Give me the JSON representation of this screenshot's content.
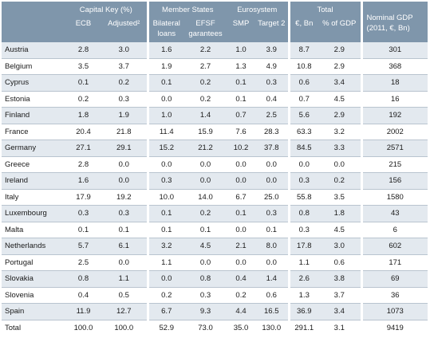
{
  "header": {
    "capital_key": "Capital Key (%)",
    "member_states": "Member States",
    "eurosystem": "Eurosystem",
    "total": "Total",
    "nominal_gdp": "Nominal GDP (2011, €, Bn)",
    "ecb": "ECB",
    "adjusted": "Adjusted²",
    "bilateral": "Bilateral loans",
    "efsf": "EFSF garantees",
    "smp": "SMP",
    "target2": "Target 2",
    "eur_bn": "€, Bn",
    "pct_gdp": "% of GDP"
  },
  "rows": [
    {
      "country": "Austria",
      "ecb": "2.8",
      "adjusted": "3.0",
      "bilateral": "1.6",
      "efsf": "2.2",
      "smp": "1.0",
      "target2": "3.9",
      "eur_bn": "8.7",
      "pct_gdp": "2.9",
      "gdp": "301"
    },
    {
      "country": "Belgium",
      "ecb": "3.5",
      "adjusted": "3.7",
      "bilateral": "1.9",
      "efsf": "2.7",
      "smp": "1.3",
      "target2": "4.9",
      "eur_bn": "10.8",
      "pct_gdp": "2.9",
      "gdp": "368"
    },
    {
      "country": "Cyprus",
      "ecb": "0.1",
      "adjusted": "0.2",
      "bilateral": "0.1",
      "efsf": "0.2",
      "smp": "0.1",
      "target2": "0.3",
      "eur_bn": "0.6",
      "pct_gdp": "3.4",
      "gdp": "18"
    },
    {
      "country": "Estonia",
      "ecb": "0.2",
      "adjusted": "0.3",
      "bilateral": "0.0",
      "efsf": "0.2",
      "smp": "0.1",
      "target2": "0.4",
      "eur_bn": "0.7",
      "pct_gdp": "4.5",
      "gdp": "16"
    },
    {
      "country": "Finland",
      "ecb": "1.8",
      "adjusted": "1.9",
      "bilateral": "1.0",
      "efsf": "1.4",
      "smp": "0.7",
      "target2": "2.5",
      "eur_bn": "5.6",
      "pct_gdp": "2.9",
      "gdp": "192"
    },
    {
      "country": "France",
      "ecb": "20.4",
      "adjusted": "21.8",
      "bilateral": "11.4",
      "efsf": "15.9",
      "smp": "7.6",
      "target2": "28.3",
      "eur_bn": "63.3",
      "pct_gdp": "3.2",
      "gdp": "2002"
    },
    {
      "country": "Germany",
      "ecb": "27.1",
      "adjusted": "29.1",
      "bilateral": "15.2",
      "efsf": "21.2",
      "smp": "10.2",
      "target2": "37.8",
      "eur_bn": "84.5",
      "pct_gdp": "3.3",
      "gdp": "2571"
    },
    {
      "country": "Greece",
      "ecb": "2.8",
      "adjusted": "0.0",
      "bilateral": "0.0",
      "efsf": "0.0",
      "smp": "0.0",
      "target2": "0.0",
      "eur_bn": "0.0",
      "pct_gdp": "0.0",
      "gdp": "215"
    },
    {
      "country": "Ireland",
      "ecb": "1.6",
      "adjusted": "0.0",
      "bilateral": "0.3",
      "efsf": "0.0",
      "smp": "0.0",
      "target2": "0.0",
      "eur_bn": "0.3",
      "pct_gdp": "0.2",
      "gdp": "156"
    },
    {
      "country": "Italy",
      "ecb": "17.9",
      "adjusted": "19.2",
      "bilateral": "10.0",
      "efsf": "14.0",
      "smp": "6.7",
      "target2": "25.0",
      "eur_bn": "55.8",
      "pct_gdp": "3.5",
      "gdp": "1580"
    },
    {
      "country": "Luxembourg",
      "ecb": "0.3",
      "adjusted": "0.3",
      "bilateral": "0.1",
      "efsf": "0.2",
      "smp": "0.1",
      "target2": "0.3",
      "eur_bn": "0.8",
      "pct_gdp": "1.8",
      "gdp": "43"
    },
    {
      "country": "Malta",
      "ecb": "0.1",
      "adjusted": "0.1",
      "bilateral": "0.1",
      "efsf": "0.1",
      "smp": "0.0",
      "target2": "0.1",
      "eur_bn": "0.3",
      "pct_gdp": "4.5",
      "gdp": "6"
    },
    {
      "country": "Netherlands",
      "ecb": "5.7",
      "adjusted": "6.1",
      "bilateral": "3.2",
      "efsf": "4.5",
      "smp": "2.1",
      "target2": "8.0",
      "eur_bn": "17.8",
      "pct_gdp": "3.0",
      "gdp": "602"
    },
    {
      "country": "Portugal",
      "ecb": "2.5",
      "adjusted": "0.0",
      "bilateral": "1.1",
      "efsf": "0.0",
      "smp": "0.0",
      "target2": "0.0",
      "eur_bn": "1.1",
      "pct_gdp": "0.6",
      "gdp": "171"
    },
    {
      "country": "Slovakia",
      "ecb": "0.8",
      "adjusted": "1.1",
      "bilateral": "0.0",
      "efsf": "0.8",
      "smp": "0.4",
      "target2": "1.4",
      "eur_bn": "2.6",
      "pct_gdp": "3.8",
      "gdp": "69"
    },
    {
      "country": "Slovenia",
      "ecb": "0.4",
      "adjusted": "0.5",
      "bilateral": "0.2",
      "efsf": "0.3",
      "smp": "0.2",
      "target2": "0.6",
      "eur_bn": "1.3",
      "pct_gdp": "3.7",
      "gdp": "36"
    },
    {
      "country": "Spain",
      "ecb": "11.9",
      "adjusted": "12.7",
      "bilateral": "6.7",
      "efsf": "9.3",
      "smp": "4.4",
      "target2": "16.5",
      "eur_bn": "36.9",
      "pct_gdp": "3.4",
      "gdp": "1073"
    }
  ],
  "total": {
    "country": "Total",
    "ecb": "100.0",
    "adjusted": "100.0",
    "bilateral": "52.9",
    "efsf": "73.0",
    "smp": "35.0",
    "target2": "130.0",
    "eur_bn": "291.1",
    "pct_gdp": "3.1",
    "gdp": "9419"
  },
  "colors": {
    "header_bg": "#7f96ab",
    "stripe": "#e3e9ef"
  }
}
